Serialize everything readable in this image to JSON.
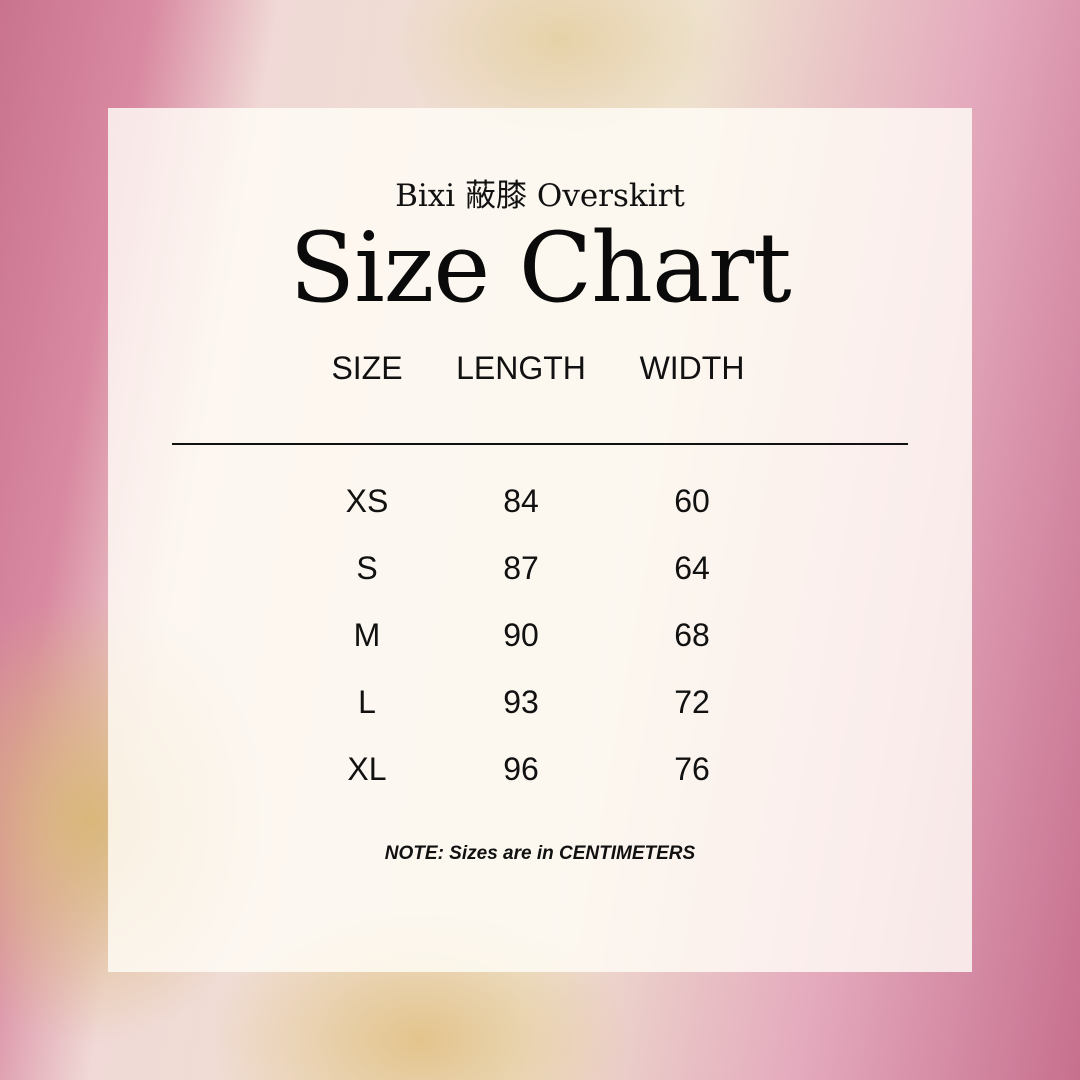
{
  "subtitle": "Bixi 蔽膝 Overskirt",
  "title": "Size Chart",
  "headers": [
    "SIZE",
    "LENGTH",
    "WIDTH"
  ],
  "rows": [
    [
      "XS",
      "84",
      "60"
    ],
    [
      "S",
      "87",
      "64"
    ],
    [
      "M",
      "90",
      "68"
    ],
    [
      "L",
      "93",
      "72"
    ],
    [
      "XL",
      "96",
      "76"
    ]
  ],
  "note": "NOTE: Sizes are in CENTIMETERS"
}
